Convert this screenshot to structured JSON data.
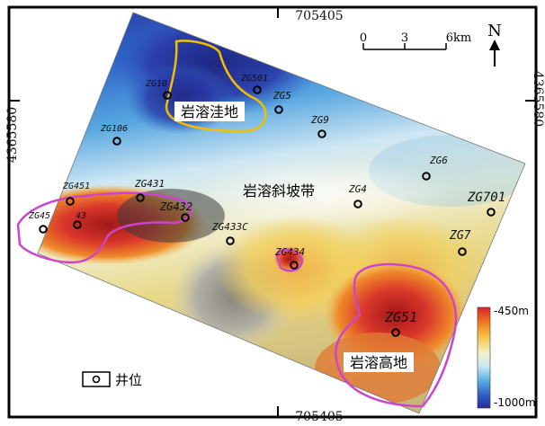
{
  "coordinates": {
    "top": "705405",
    "bottom": "705405",
    "left": "4365580",
    "right": "4365580"
  },
  "scale_bar": {
    "ticks": [
      "0",
      "3",
      "6km"
    ]
  },
  "north_arrow": {
    "label": "N"
  },
  "regions": {
    "depression": "岩溶洼地",
    "slope": "岩溶斜坡带",
    "highland": "岩溶高地"
  },
  "wells": [
    {
      "id": "ZG10",
      "label": "ZG10"
    },
    {
      "id": "ZG501",
      "label": "ZG501"
    },
    {
      "id": "ZG5",
      "label": "ZG5"
    },
    {
      "id": "ZG106",
      "label": "ZG106"
    },
    {
      "id": "ZG9",
      "label": "ZG9"
    },
    {
      "id": "ZG6",
      "label": "ZG6"
    },
    {
      "id": "ZG451",
      "label": "ZG451"
    },
    {
      "id": "ZG431",
      "label": "ZG431"
    },
    {
      "id": "ZG432",
      "label": "ZG432"
    },
    {
      "id": "ZG45",
      "label": "ZG45"
    },
    {
      "id": "ZG43",
      "label": "43"
    },
    {
      "id": "ZG433C",
      "label": "ZG433C"
    },
    {
      "id": "ZG4",
      "label": "ZG4"
    },
    {
      "id": "ZG701",
      "label": "ZG701"
    },
    {
      "id": "ZG7",
      "label": "ZG7"
    },
    {
      "id": "ZG434",
      "label": "ZG434"
    },
    {
      "id": "ZG51",
      "label": "ZG51"
    }
  ],
  "colorbar": {
    "max_label": "-450m",
    "min_label": "-1000m",
    "colors": [
      "#d8222a",
      "#ef7a1e",
      "#f5c74a",
      "#f3f0c8",
      "#cfe8f3",
      "#5fb3e4",
      "#2f5fc4",
      "#2a2b9a"
    ]
  },
  "legend": {
    "well_label": "井位"
  },
  "colors": {
    "depression_outline": "#f0c000",
    "highland_outline": "#cc44cc",
    "frame": "#000000"
  }
}
